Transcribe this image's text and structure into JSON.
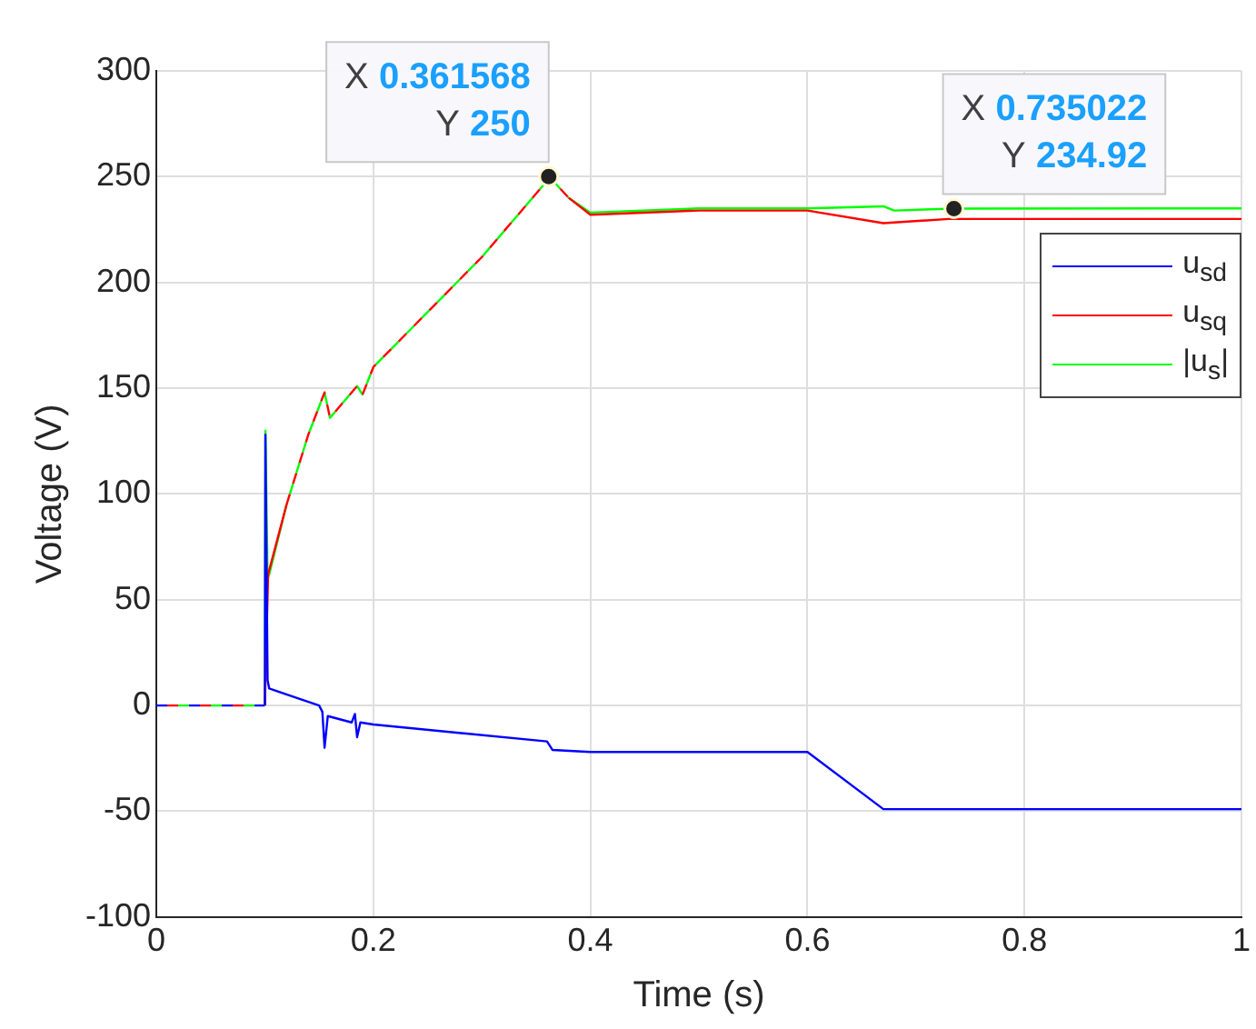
{
  "chart_data": {
    "type": "line",
    "xlabel": "Time (s)",
    "ylabel": "Voltage (V)",
    "xlim": [
      0,
      1
    ],
    "xticks": [
      0,
      0.2,
      0.4,
      0.6,
      0.8,
      1
    ],
    "ylim": [
      -100,
      300
    ],
    "yticks": [
      -100,
      -50,
      0,
      50,
      100,
      150,
      200,
      250,
      300
    ],
    "grid": true,
    "legend": "top right",
    "marker": "none",
    "line_style": "solid",
    "annotations": [
      {
        "text": "X 0.361568\nY 250",
        "x": 0.361568,
        "y": 250
      },
      {
        "text": "X 0.735022\nY 234.92",
        "x": 0.735022,
        "y": 234.92
      }
    ],
    "series": [
      {
        "name": "u$_{sd}$",
        "color": "#0000ff",
        "x": [
          0,
          0.1,
          0.1005,
          0.1025,
          0.104,
          0.15,
          0.153,
          0.155,
          0.158,
          0.18,
          0.183,
          0.185,
          0.188,
          0.2,
          0.36,
          0.365,
          0.4,
          0.6,
          0.67,
          1
        ],
        "values": [
          0,
          0,
          128,
          12,
          8,
          0,
          -3,
          -20,
          -5,
          -8,
          -4,
          -15,
          -8,
          -9,
          -17,
          -21,
          -22,
          -22,
          -49,
          -49
        ]
      },
      {
        "name": "u$_{sq}$",
        "color": "#ff0000",
        "x": [
          0,
          0.1,
          0.103,
          0.12,
          0.14,
          0.155,
          0.16,
          0.18,
          0.185,
          0.19,
          0.2,
          0.3,
          0.36,
          0.362,
          0.38,
          0.4,
          0.5,
          0.6,
          0.67,
          0.73,
          1
        ],
        "values": [
          0,
          0,
          62,
          95,
          128,
          148,
          136,
          148,
          151,
          147,
          160,
          212,
          248,
          250,
          240,
          232,
          234,
          234,
          228,
          230,
          230
        ]
      },
      {
        "name": "|u$_{s}$|",
        "color": "#00ff00",
        "x": [
          0,
          0.1,
          0.1005,
          0.1025,
          0.104,
          0.12,
          0.14,
          0.155,
          0.16,
          0.18,
          0.185,
          0.19,
          0.2,
          0.3,
          0.36,
          0.362,
          0.38,
          0.4,
          0.5,
          0.6,
          0.67,
          0.68,
          0.735022,
          1
        ],
        "values": [
          0,
          0,
          130,
          60,
          62,
          95,
          128,
          148,
          136,
          148,
          151,
          147,
          160,
          212,
          248,
          250,
          240,
          233,
          235,
          235,
          236,
          234,
          234.92,
          235
        ]
      }
    ]
  }
}
